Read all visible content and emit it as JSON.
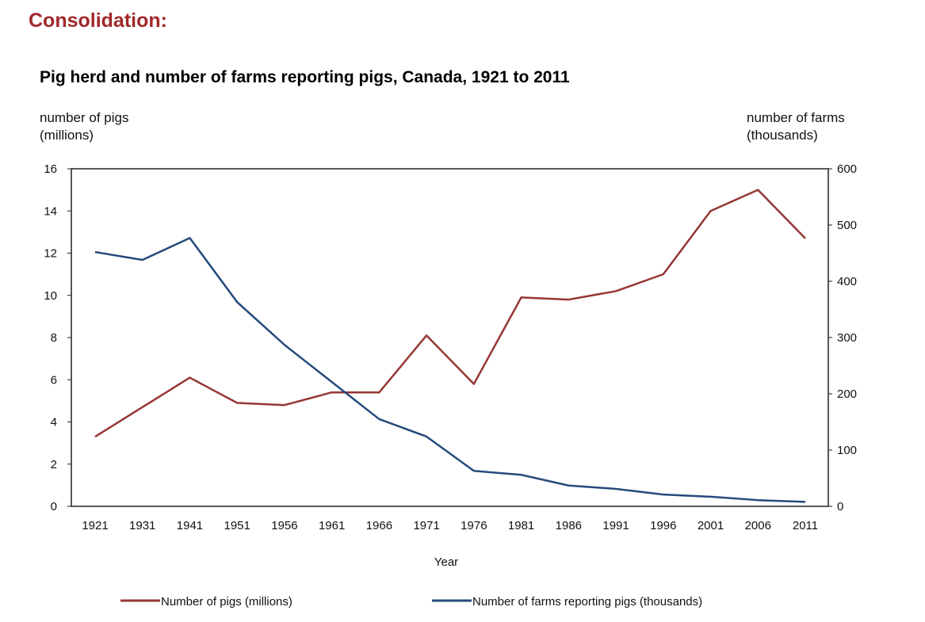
{
  "heading": "Consolidation:",
  "chart_data": {
    "type": "line",
    "title": "Pig herd and number of farms reporting pigs, Canada, 1921 to 2011",
    "xlabel": "Year",
    "ylabel_left": [
      "number of pigs",
      "(millions)"
    ],
    "ylabel_right": [
      "number of farms",
      "(thousands)"
    ],
    "categories": [
      "1921",
      "1931",
      "1941",
      "1951",
      "1956",
      "1961",
      "1966",
      "1971",
      "1976",
      "1981",
      "1986",
      "1991",
      "1996",
      "2001",
      "2006",
      "2011"
    ],
    "ylim_left": [
      0,
      16
    ],
    "yticks_left": [
      0,
      2,
      4,
      6,
      8,
      10,
      12,
      14,
      16
    ],
    "ylim_right": [
      0,
      600
    ],
    "yticks_right": [
      0,
      100,
      200,
      300,
      400,
      500,
      600
    ],
    "grid": false,
    "legend_position": "bottom",
    "series": [
      {
        "name": "Number of pigs (millions)",
        "axis": "left",
        "color": "#953735",
        "values": [
          3.3,
          4.7,
          6.1,
          4.9,
          4.8,
          5.4,
          5.4,
          8.1,
          5.8,
          9.9,
          9.8,
          10.2,
          11.0,
          14.0,
          15.0,
          12.7
        ]
      },
      {
        "name": "Number of farms reporting pigs (thousands)",
        "axis": "right",
        "color": "#254b7c",
        "values": [
          452,
          438,
          477,
          363,
          287,
          221,
          155,
          124,
          63,
          56,
          37,
          31,
          21,
          17,
          11,
          8
        ]
      }
    ]
  }
}
